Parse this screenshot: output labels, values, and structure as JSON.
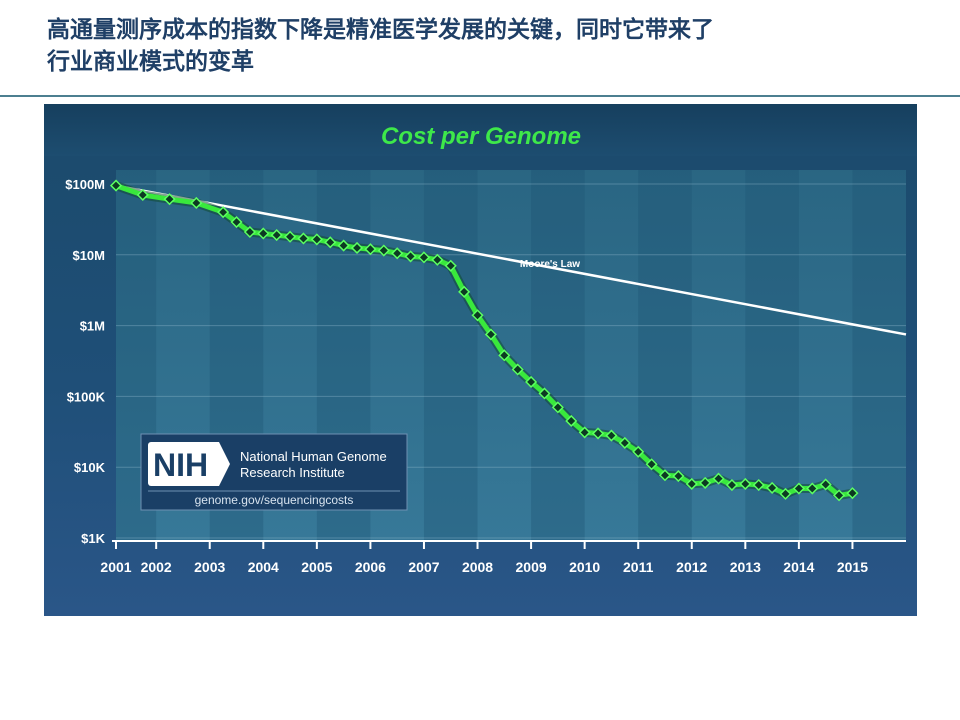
{
  "slide": {
    "title_line1": "高通量测序成本的指数下降是精准医学发展的关键，同时它带来了",
    "title_line2": "行业商业模式的变革"
  },
  "logo": {
    "badge": "NIH",
    "org_line1": "National Human Genome",
    "org_line2": "Research Institute",
    "url": "genome.gov/sequencingcosts"
  },
  "colors": {
    "panel_top": "#1d4a6e",
    "panel_bottom": "#2a5584",
    "title_green": "#3ee84a",
    "series_green": "#39e83c",
    "marker": "#0c3a22",
    "moore_line": "#ffffff"
  },
  "chart_data": {
    "type": "line",
    "title": "Cost per Genome",
    "y_scale": "log",
    "ylim": [
      1000,
      100000000
    ],
    "y_ticks": [
      {
        "value": 100000000,
        "label": "$100M"
      },
      {
        "value": 10000000,
        "label": "$10M"
      },
      {
        "value": 1000000,
        "label": "$1M"
      },
      {
        "value": 100000,
        "label": "$100K"
      },
      {
        "value": 10000,
        "label": "$10K"
      },
      {
        "value": 1000,
        "label": "$1K"
      }
    ],
    "xlim": [
      2001.0,
      2015.75
    ],
    "x_ticks": [
      {
        "value": 2001.0,
        "label": "2001"
      },
      {
        "value": 2001.75,
        "label": "2002"
      },
      {
        "value": 2002.75,
        "label": "2003"
      },
      {
        "value": 2003.75,
        "label": "2004"
      },
      {
        "value": 2004.75,
        "label": "2005"
      },
      {
        "value": 2005.75,
        "label": "2006"
      },
      {
        "value": 2006.75,
        "label": "2007"
      },
      {
        "value": 2007.75,
        "label": "2008"
      },
      {
        "value": 2008.75,
        "label": "2009"
      },
      {
        "value": 2009.75,
        "label": "2010"
      },
      {
        "value": 2010.75,
        "label": "2011"
      },
      {
        "value": 2011.75,
        "label": "2012"
      },
      {
        "value": 2012.75,
        "label": "2013"
      },
      {
        "value": 2013.75,
        "label": "2014"
      },
      {
        "value": 2014.75,
        "label": "2015"
      }
    ],
    "series": [
      {
        "points": [
          [
            2001.0,
            95000000
          ],
          [
            2001.5,
            70000000
          ],
          [
            2002.0,
            61000000
          ],
          [
            2002.5,
            54000000
          ],
          [
            2003.0,
            40000000
          ],
          [
            2003.25,
            29000000
          ],
          [
            2003.5,
            21000000
          ],
          [
            2003.75,
            20000000
          ],
          [
            2004.0,
            19000000
          ],
          [
            2004.25,
            18000000
          ],
          [
            2004.5,
            17000000
          ],
          [
            2004.75,
            16500000
          ],
          [
            2005.0,
            15000000
          ],
          [
            2005.25,
            13500000
          ],
          [
            2005.5,
            12500000
          ],
          [
            2005.75,
            12000000
          ],
          [
            2006.0,
            11500000
          ],
          [
            2006.25,
            10500000
          ],
          [
            2006.5,
            9500000
          ],
          [
            2006.75,
            9200000
          ],
          [
            2007.0,
            8500000
          ],
          [
            2007.25,
            7000000
          ],
          [
            2007.5,
            3000000
          ],
          [
            2007.75,
            1400000
          ],
          [
            2008.0,
            750000
          ],
          [
            2008.25,
            380000
          ],
          [
            2008.5,
            240000
          ],
          [
            2008.75,
            160000
          ],
          [
            2009.0,
            110000
          ],
          [
            2009.25,
            70000
          ],
          [
            2009.5,
            45000
          ],
          [
            2009.75,
            31000
          ],
          [
            2010.0,
            30000
          ],
          [
            2010.25,
            28000
          ],
          [
            2010.5,
            22000
          ],
          [
            2010.75,
            16500
          ],
          [
            2011.0,
            11000
          ],
          [
            2011.25,
            7700
          ],
          [
            2011.5,
            7500
          ],
          [
            2011.75,
            5800
          ],
          [
            2012.0,
            6000
          ],
          [
            2012.25,
            6900
          ],
          [
            2012.5,
            5600
          ],
          [
            2012.75,
            5800
          ],
          [
            2013.0,
            5600
          ],
          [
            2013.25,
            5100
          ],
          [
            2013.5,
            4200
          ],
          [
            2013.75,
            5000
          ],
          [
            2014.0,
            5000
          ],
          [
            2014.25,
            5700
          ],
          [
            2014.5,
            4000
          ],
          [
            2014.75,
            4300
          ]
        ]
      },
      {
        "name": "Moore's Law",
        "points": [
          [
            2001.0,
            95000000
          ],
          [
            2015.75,
            750000
          ]
        ]
      }
    ]
  }
}
